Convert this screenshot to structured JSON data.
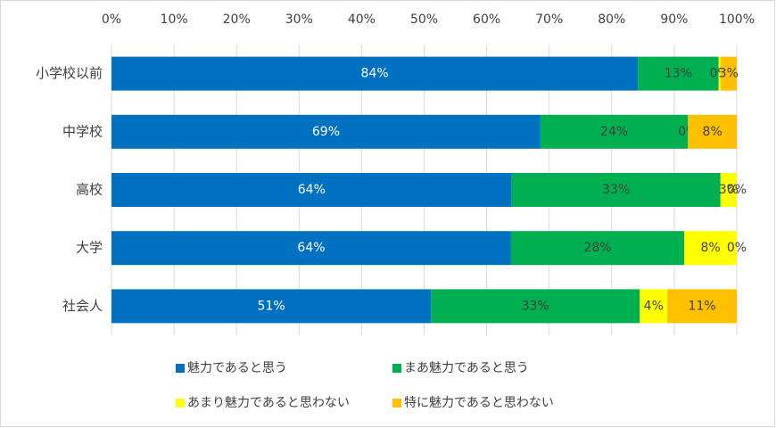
{
  "chart_data": {
    "type": "bar",
    "orientation": "horizontal",
    "stacked": true,
    "categories": [
      "小学校以前",
      "中学校",
      "高校",
      "大学",
      "社会人"
    ],
    "series": [
      {
        "name": "魅力であると思う",
        "color": "#0070c0",
        "values": [
          84.2,
          68.6,
          64.0,
          63.9,
          51.1
        ],
        "value_labels": [
          "84%",
          "69%",
          "64%",
          "64%",
          "51%"
        ]
      },
      {
        "name": "まあ魅力であると思う",
        "color": "#00b050",
        "values": [
          12.9,
          23.6,
          33.4,
          27.7,
          33.4
        ],
        "value_labels": [
          "13%",
          "24%",
          "33%",
          "28%",
          "33%"
        ]
      },
      {
        "name": "あまり魅力であると思わない",
        "color": "#ffff00",
        "values": [
          0.3,
          0,
          2.6,
          8.4,
          4.4
        ],
        "value_labels": [
          "0%",
          "0%",
          "3%",
          "8%",
          "4%"
        ]
      },
      {
        "name": "特に魅力であると思わない",
        "color": "#ffc000",
        "values": [
          2.6,
          7.8,
          0,
          0,
          11.1
        ],
        "value_labels": [
          "3%",
          "8%",
          "0%",
          "0%",
          "11%"
        ]
      }
    ],
    "xlim": [
      0,
      100
    ],
    "xticks": [
      {
        "value": 0,
        "label": "0%"
      },
      {
        "value": 10,
        "label": "10%"
      },
      {
        "value": 20,
        "label": "20%"
      },
      {
        "value": 30,
        "label": "30%"
      },
      {
        "value": 40,
        "label": "40%"
      },
      {
        "value": 50,
        "label": "50%"
      },
      {
        "value": 60,
        "label": "60%"
      },
      {
        "value": 70,
        "label": "70%"
      },
      {
        "value": 80,
        "label": "80%"
      },
      {
        "value": 90,
        "label": "90%"
      },
      {
        "value": 100,
        "label": "100%"
      }
    ],
    "grid": true,
    "legend": "bottom"
  }
}
